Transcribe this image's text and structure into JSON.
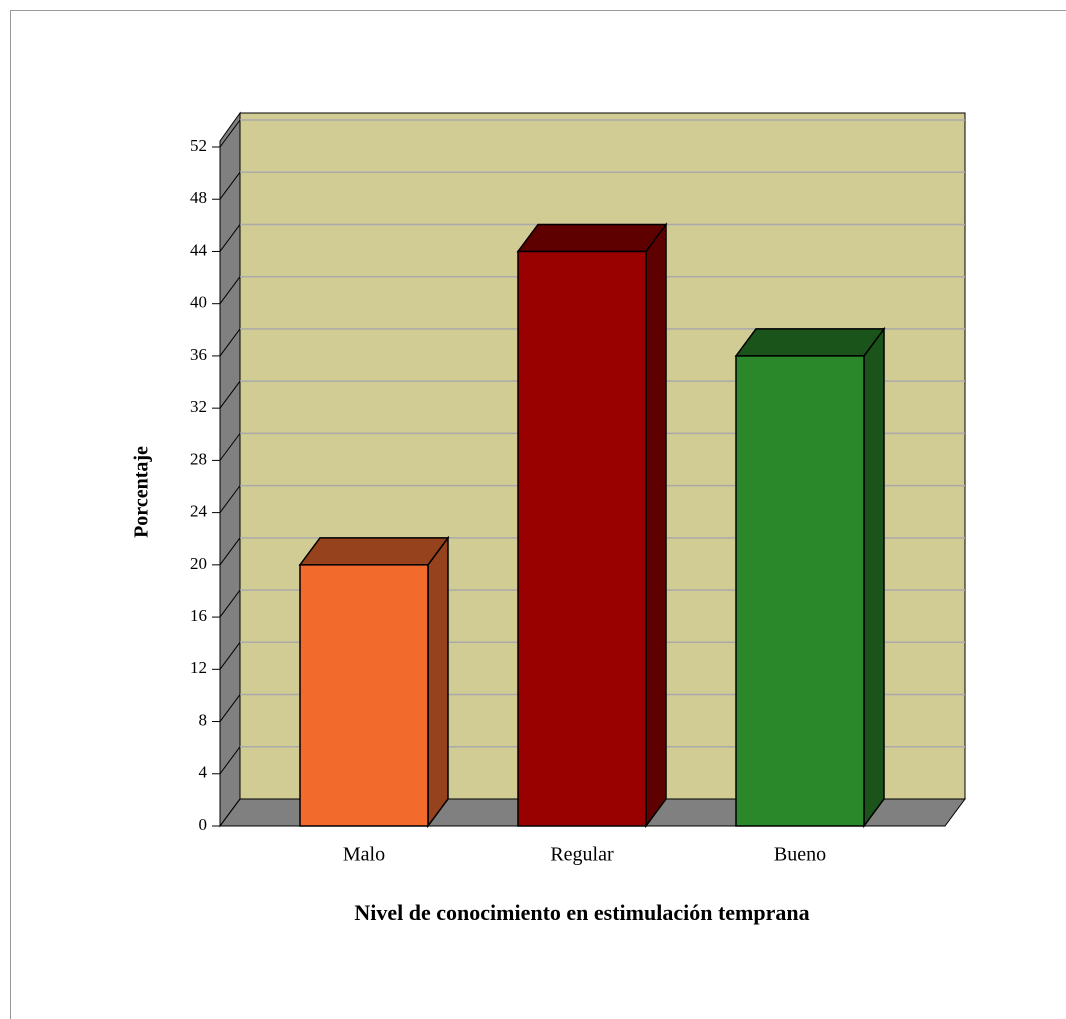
{
  "chart_data": {
    "type": "bar",
    "categories": [
      "Malo",
      "Regular",
      "Bueno"
    ],
    "values": [
      20,
      44,
      36
    ],
    "colors": [
      "#f26b2d",
      "#990000",
      "#2a882a"
    ],
    "ylabel": "Porcentaje",
    "xlabel": "Nivel de conocimiento en estimulación temprana",
    "ylim": [
      0,
      52
    ],
    "yticks": [
      0,
      4,
      8,
      12,
      16,
      20,
      24,
      28,
      32,
      36,
      40,
      44,
      48,
      52
    ],
    "grid": true
  }
}
